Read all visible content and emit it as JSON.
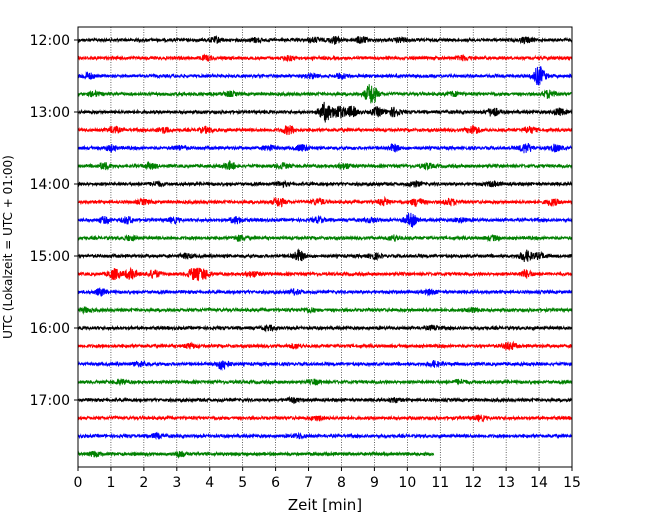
{
  "chart_data": {
    "type": "line",
    "title": "",
    "xlabel": "Zeit  [min]",
    "ylabel": "UTC (Lokalzeit = UTC + 01:00)",
    "xlim": [
      0,
      15
    ],
    "x_ticks": [
      0,
      1,
      2,
      3,
      4,
      5,
      6,
      7,
      8,
      9,
      10,
      11,
      12,
      13,
      14,
      15
    ],
    "y_tick_labels": [
      "12:00",
      "13:00",
      "14:00",
      "15:00",
      "16:00",
      "17:00"
    ],
    "grid": "vertical dotted lines at each minute",
    "color_cycle": [
      "#000000",
      "#ff0000",
      "#0000ff",
      "#008000"
    ],
    "series": [
      {
        "time": "12:00",
        "color": "#000000",
        "x_end": 15,
        "bursts": [
          [
            4.2,
            2.5
          ],
          [
            5.4,
            2
          ],
          [
            7.2,
            2
          ],
          [
            7.8,
            3
          ],
          [
            8.6,
            3
          ],
          [
            9.8,
            2
          ],
          [
            13.6,
            2.5
          ]
        ]
      },
      {
        "time": "12:15",
        "color": "#ff0000",
        "x_end": 15,
        "bursts": [
          [
            3.9,
            2
          ],
          [
            6.4,
            1.8
          ],
          [
            11.7,
            2
          ]
        ]
      },
      {
        "time": "12:30",
        "color": "#0000ff",
        "x_end": 15,
        "bursts": [
          [
            0.3,
            3
          ],
          [
            7.1,
            2
          ],
          [
            8.0,
            2
          ],
          [
            14.0,
            9
          ]
        ]
      },
      {
        "time": "12:45",
        "color": "#008000",
        "x_end": 15,
        "bursts": [
          [
            0.5,
            2
          ],
          [
            4.6,
            2
          ],
          [
            8.9,
            10
          ],
          [
            11.4,
            2
          ],
          [
            14.3,
            3.5
          ]
        ]
      },
      {
        "time": "13:00",
        "color": "#000000",
        "x_end": 15,
        "bursts": [
          [
            7.5,
            9
          ],
          [
            7.9,
            6
          ],
          [
            8.3,
            5
          ],
          [
            9.1,
            4
          ],
          [
            9.6,
            4
          ],
          [
            12.6,
            4
          ],
          [
            14.6,
            3
          ]
        ]
      },
      {
        "time": "13:15",
        "color": "#ff0000",
        "x_end": 15,
        "bursts": [
          [
            1.1,
            3
          ],
          [
            2.6,
            2.5
          ],
          [
            3.9,
            2.5
          ],
          [
            6.4,
            4
          ],
          [
            12.0,
            4
          ],
          [
            13.7,
            3
          ]
        ]
      },
      {
        "time": "13:30",
        "color": "#0000ff",
        "x_end": 15,
        "bursts": [
          [
            1.0,
            2.5
          ],
          [
            3.1,
            2
          ],
          [
            5.8,
            2.5
          ],
          [
            6.8,
            3
          ],
          [
            9.6,
            3
          ],
          [
            13.6,
            4.5
          ],
          [
            14.5,
            3
          ]
        ]
      },
      {
        "time": "13:45",
        "color": "#008000",
        "x_end": 15,
        "bursts": [
          [
            0.8,
            3
          ],
          [
            2.2,
            2.5
          ],
          [
            4.6,
            3.5
          ],
          [
            6.2,
            2.5
          ],
          [
            8.1,
            2.5
          ],
          [
            10.6,
            2.5
          ]
        ]
      },
      {
        "time": "14:00",
        "color": "#000000",
        "x_end": 15,
        "bursts": [
          [
            2.4,
            2
          ],
          [
            6.2,
            2
          ],
          [
            10.2,
            2.5
          ],
          [
            12.6,
            2
          ]
        ]
      },
      {
        "time": "14:15",
        "color": "#ff0000",
        "x_end": 15,
        "bursts": [
          [
            2.0,
            2
          ],
          [
            6.1,
            4
          ],
          [
            7.3,
            3
          ],
          [
            9.3,
            3
          ],
          [
            10.3,
            3.5
          ],
          [
            11.3,
            3
          ],
          [
            14.4,
            3
          ]
        ]
      },
      {
        "time": "14:30",
        "color": "#0000ff",
        "x_end": 15,
        "bursts": [
          [
            0.8,
            2.5
          ],
          [
            1.5,
            3
          ],
          [
            2.9,
            2
          ],
          [
            4.8,
            3
          ],
          [
            7.3,
            2.5
          ],
          [
            8.9,
            2
          ],
          [
            10.1,
            6
          ],
          [
            11.6,
            2
          ]
        ]
      },
      {
        "time": "14:45",
        "color": "#008000",
        "x_end": 15,
        "bursts": [
          [
            1.6,
            2
          ],
          [
            4.9,
            2.5
          ],
          [
            9.6,
            2.5
          ],
          [
            12.6,
            2
          ]
        ]
      },
      {
        "time": "15:00",
        "color": "#000000",
        "x_end": 15,
        "bursts": [
          [
            3.3,
            2
          ],
          [
            6.7,
            5
          ],
          [
            9.0,
            2.5
          ],
          [
            13.6,
            5
          ],
          [
            14.0,
            2.5
          ]
        ]
      },
      {
        "time": "15:15",
        "color": "#ff0000",
        "x_end": 15,
        "bursts": [
          [
            1.1,
            5
          ],
          [
            1.6,
            5
          ],
          [
            2.3,
            3.5
          ],
          [
            3.5,
            5
          ],
          [
            3.8,
            5
          ],
          [
            5.3,
            2.5
          ],
          [
            13.6,
            3.5
          ]
        ]
      },
      {
        "time": "15:30",
        "color": "#0000ff",
        "x_end": 15,
        "bursts": [
          [
            0.7,
            3
          ],
          [
            6.6,
            2
          ],
          [
            10.7,
            2
          ]
        ]
      },
      {
        "time": "15:45",
        "color": "#008000",
        "x_end": 15,
        "bursts": [
          [
            0.2,
            2
          ],
          [
            7.0,
            2
          ],
          [
            12.0,
            2
          ]
        ]
      },
      {
        "time": "16:00",
        "color": "#000000",
        "x_end": 15,
        "bursts": [
          [
            5.8,
            2
          ],
          [
            10.8,
            2
          ]
        ]
      },
      {
        "time": "16:15",
        "color": "#ff0000",
        "x_end": 15,
        "bursts": [
          [
            3.4,
            2
          ],
          [
            6.6,
            2
          ],
          [
            13.1,
            3.5
          ]
        ]
      },
      {
        "time": "16:30",
        "color": "#0000ff",
        "x_end": 15,
        "bursts": [
          [
            1.9,
            2
          ],
          [
            4.4,
            5
          ],
          [
            10.8,
            2.5
          ]
        ]
      },
      {
        "time": "16:45",
        "color": "#008000",
        "x_end": 15,
        "bursts": [
          [
            1.3,
            2
          ],
          [
            7.2,
            2
          ],
          [
            11.6,
            2
          ]
        ]
      },
      {
        "time": "17:00",
        "color": "#000000",
        "x_end": 15,
        "bursts": [
          [
            6.5,
            2
          ],
          [
            9.6,
            2
          ]
        ]
      },
      {
        "time": "17:15",
        "color": "#ff0000",
        "x_end": 15,
        "bursts": [
          [
            7.3,
            2
          ],
          [
            12.2,
            2
          ]
        ]
      },
      {
        "time": "17:30",
        "color": "#0000ff",
        "x_end": 15,
        "bursts": [
          [
            2.4,
            2
          ],
          [
            6.7,
            2
          ]
        ]
      },
      {
        "time": "17:45",
        "color": "#008000",
        "x_end": 10.8,
        "bursts": [
          [
            0.5,
            2
          ],
          [
            3.1,
            2
          ]
        ]
      }
    ]
  }
}
